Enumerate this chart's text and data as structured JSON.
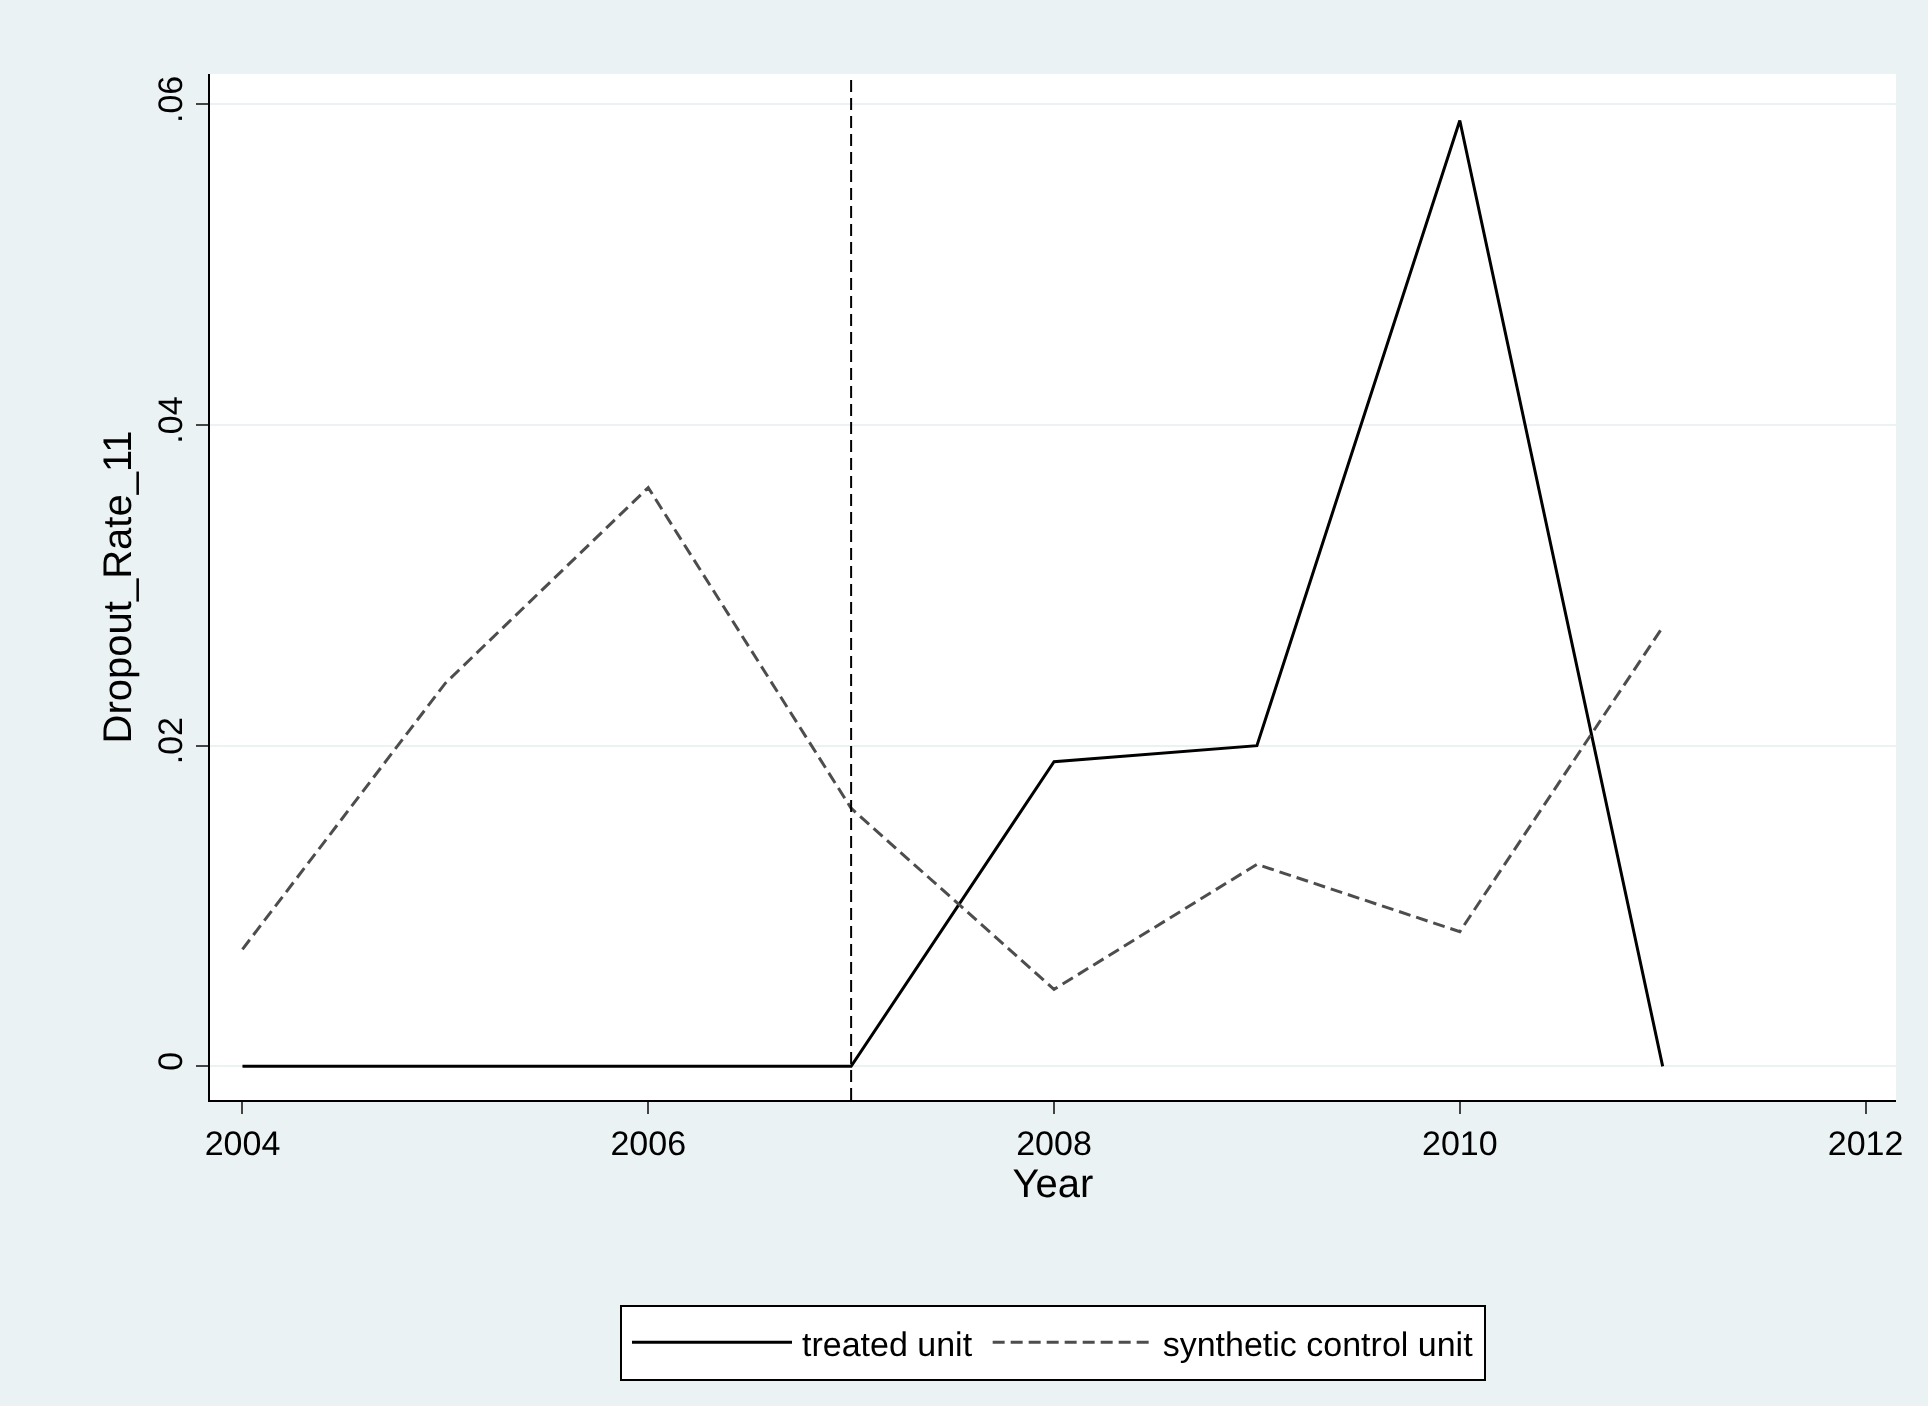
{
  "chart_data": {
    "type": "line",
    "xlabel": "Year",
    "ylabel": "Dropout_Rate_11",
    "x": [
      2004,
      2005,
      2006,
      2007,
      2008,
      2009,
      2010,
      2011
    ],
    "series": [
      {
        "name": "treated unit",
        "color": "#000000",
        "line_style": "solid",
        "values": [
          0,
          0,
          0,
          0,
          0.019,
          0.02,
          0.059,
          0
        ]
      },
      {
        "name": "synthetic control unit",
        "color": "#4d4d4d",
        "line_style": "dashed",
        "values": [
          0.0073,
          0.0239,
          0.0361,
          0.0161,
          0.0048,
          0.0126,
          0.0084,
          0.0274
        ]
      }
    ],
    "xlim": [
      2003.84,
      2012.15
    ],
    "xticks": [
      2004,
      2006,
      2008,
      2010,
      2012
    ],
    "ylim": [
      -0.0021,
      0.0619
    ],
    "yticks": [
      {
        "value": 0,
        "label": "0"
      },
      {
        "value": 0.02,
        "label": ".02"
      },
      {
        "value": 0.04,
        "label": ".04"
      },
      {
        "value": 0.06,
        "label": ".06"
      }
    ],
    "ref_lines": [
      {
        "axis": "x",
        "value": 2007,
        "color": "#000000",
        "line_style": "dashed"
      }
    ],
    "grid": "y",
    "legend": "bottom",
    "marker": "none"
  }
}
